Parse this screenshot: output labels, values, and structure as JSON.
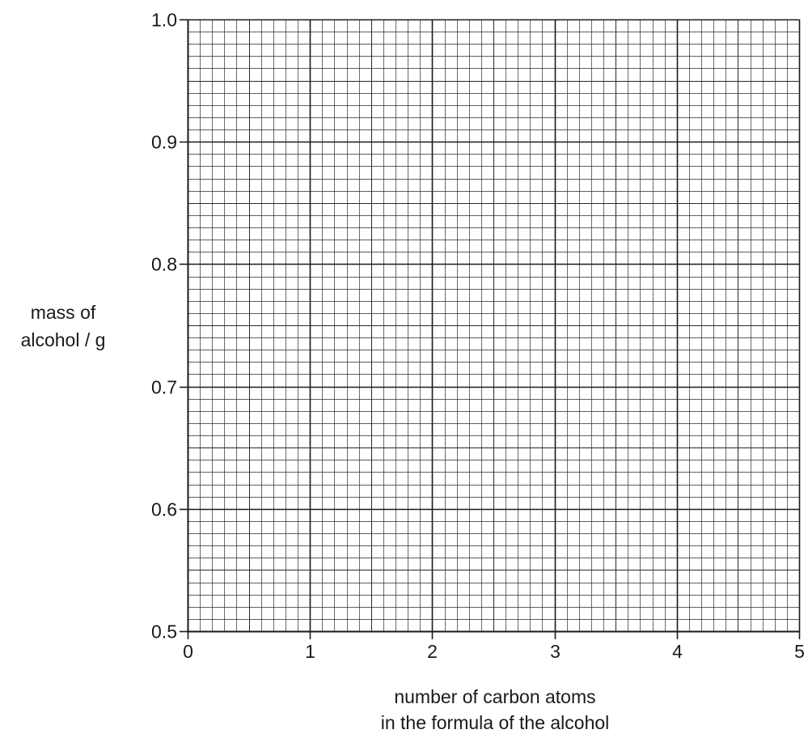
{
  "chart_data": {
    "type": "scatter",
    "title": "",
    "xlabel_lines": [
      "number of carbon atoms",
      "in the formula of the alcohol"
    ],
    "ylabel_lines": [
      "mass of",
      "alcohol / g"
    ],
    "xlim": [
      0,
      5
    ],
    "ylim": [
      0.5,
      1.0
    ],
    "x_ticks": [
      0,
      1,
      2,
      3,
      4,
      5
    ],
    "x_tick_labels": [
      "0",
      "1",
      "2",
      "3",
      "4",
      "5"
    ],
    "y_ticks": [
      0.5,
      0.6,
      0.7,
      0.8,
      0.9,
      1.0
    ],
    "y_tick_labels": [
      "0.5",
      "0.6",
      "0.7",
      "0.8",
      "0.9",
      "1.0"
    ],
    "x_minor_step": 0.1,
    "y_minor_step": 0.01,
    "grid": true,
    "series": []
  }
}
